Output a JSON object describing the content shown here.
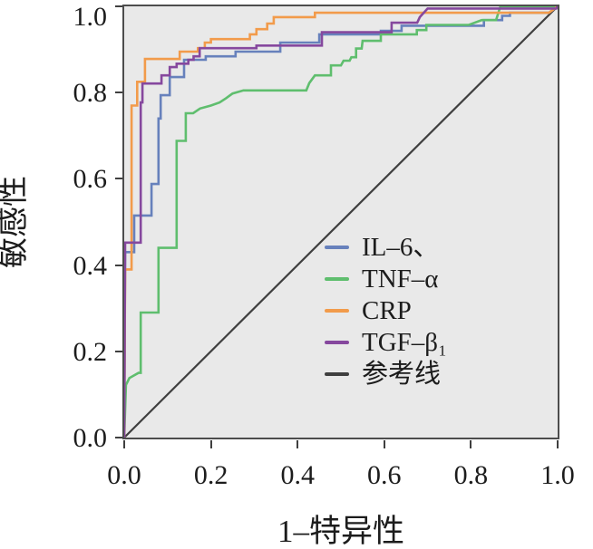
{
  "figure": {
    "kind": "roc-curve-figure",
    "background": "#ffffff"
  },
  "chart_data": {
    "type": "line",
    "subtype": "roc-step-curves",
    "title": "",
    "xlabel": "1–特异性",
    "ylabel": "敏感性",
    "xlim": [
      0,
      1
    ],
    "ylim": [
      0,
      1
    ],
    "x_ticks": [
      "0.0",
      "0.2",
      "0.4",
      "0.6",
      "0.8",
      "1.0"
    ],
    "y_ticks": [
      "0.0",
      "0.2",
      "0.4",
      "0.6",
      "0.8",
      "1.0"
    ],
    "grid": false,
    "plot_background": "#e9e9e9",
    "border_color": "#4d4d4d",
    "legend_position": "lower-right-inside",
    "series": [
      {
        "name": "IL–6、",
        "id": "il6",
        "color": "#6781BC",
        "width": 2.6,
        "z": 2,
        "points": [
          [
            0,
            0
          ],
          [
            0.002,
            0.43
          ],
          [
            0.023,
            0.43
          ],
          [
            0.023,
            0.515
          ],
          [
            0.063,
            0.515
          ],
          [
            0.063,
            0.588
          ],
          [
            0.079,
            0.588
          ],
          [
            0.079,
            0.74
          ],
          [
            0.084,
            0.74
          ],
          [
            0.084,
            0.794
          ],
          [
            0.105,
            0.794
          ],
          [
            0.105,
            0.836
          ],
          [
            0.138,
            0.836
          ],
          [
            0.138,
            0.876
          ],
          [
            0.188,
            0.876
          ],
          [
            0.188,
            0.884
          ],
          [
            0.257,
            0.884
          ],
          [
            0.257,
            0.895
          ],
          [
            0.36,
            0.895
          ],
          [
            0.36,
            0.916
          ],
          [
            0.45,
            0.916
          ],
          [
            0.45,
            0.935
          ],
          [
            0.592,
            0.935
          ],
          [
            0.592,
            0.943
          ],
          [
            0.64,
            0.943
          ],
          [
            0.64,
            0.955
          ],
          [
            0.83,
            0.955
          ],
          [
            0.83,
            0.968
          ],
          [
            0.872,
            0.968
          ],
          [
            0.872,
            0.978
          ],
          [
            0.89,
            0.978
          ],
          [
            0.89,
            0.985
          ],
          [
            0.98,
            0.985
          ],
          [
            1,
            1
          ]
        ]
      },
      {
        "name": "TNF–α",
        "id": "tnf-alpha",
        "color": "#5FBE6E",
        "width": 2.6,
        "z": 3,
        "points": [
          [
            0,
            0
          ],
          [
            0.004,
            0.122
          ],
          [
            0.012,
            0.138
          ],
          [
            0.033,
            0.15
          ],
          [
            0.038,
            0.15
          ],
          [
            0.038,
            0.29
          ],
          [
            0.079,
            0.29
          ],
          [
            0.079,
            0.44
          ],
          [
            0.121,
            0.44
          ],
          [
            0.121,
            0.688
          ],
          [
            0.142,
            0.688
          ],
          [
            0.142,
            0.752
          ],
          [
            0.159,
            0.752
          ],
          [
            0.175,
            0.763
          ],
          [
            0.2,
            0.77
          ],
          [
            0.22,
            0.777
          ],
          [
            0.235,
            0.787
          ],
          [
            0.25,
            0.798
          ],
          [
            0.275,
            0.805
          ],
          [
            0.42,
            0.805
          ],
          [
            0.427,
            0.822
          ],
          [
            0.44,
            0.84
          ],
          [
            0.477,
            0.84
          ],
          [
            0.477,
            0.863
          ],
          [
            0.5,
            0.863
          ],
          [
            0.506,
            0.874
          ],
          [
            0.52,
            0.874
          ],
          [
            0.524,
            0.882
          ],
          [
            0.535,
            0.882
          ],
          [
            0.535,
            0.902
          ],
          [
            0.548,
            0.902
          ],
          [
            0.55,
            0.92
          ],
          [
            0.592,
            0.92
          ],
          [
            0.592,
            0.935
          ],
          [
            0.675,
            0.935
          ],
          [
            0.675,
            0.945
          ],
          [
            0.697,
            0.945
          ],
          [
            0.697,
            0.957
          ],
          [
            0.795,
            0.957
          ],
          [
            0.825,
            0.968
          ],
          [
            0.858,
            0.968
          ],
          [
            0.868,
            1
          ],
          [
            1,
            1
          ]
        ]
      },
      {
        "name": "CRP",
        "id": "crp",
        "color": "#F29B4B",
        "width": 2.6,
        "z": 4,
        "points": [
          [
            0,
            0
          ],
          [
            0.002,
            0.39
          ],
          [
            0.017,
            0.39
          ],
          [
            0.017,
            0.77
          ],
          [
            0.03,
            0.77
          ],
          [
            0.03,
            0.825
          ],
          [
            0.048,
            0.825
          ],
          [
            0.048,
            0.878
          ],
          [
            0.128,
            0.878
          ],
          [
            0.128,
            0.895
          ],
          [
            0.17,
            0.895
          ],
          [
            0.17,
            0.903
          ],
          [
            0.186,
            0.903
          ],
          [
            0.186,
            0.916
          ],
          [
            0.2,
            0.916
          ],
          [
            0.2,
            0.924
          ],
          [
            0.29,
            0.924
          ],
          [
            0.29,
            0.935
          ],
          [
            0.305,
            0.935
          ],
          [
            0.305,
            0.947
          ],
          [
            0.33,
            0.947
          ],
          [
            0.33,
            0.96
          ],
          [
            0.345,
            0.96
          ],
          [
            0.345,
            0.975
          ],
          [
            0.44,
            0.975
          ],
          [
            0.44,
            0.985
          ],
          [
            0.98,
            0.985
          ],
          [
            1,
            1
          ]
        ]
      },
      {
        "name": "TGF–β₁",
        "id": "tgf-beta1",
        "color": "#86489E",
        "width": 2.6,
        "z": 5,
        "points": [
          [
            0,
            0
          ],
          [
            0.002,
            0.452
          ],
          [
            0.038,
            0.452
          ],
          [
            0.038,
            0.777
          ],
          [
            0.042,
            0.777
          ],
          [
            0.042,
            0.821
          ],
          [
            0.086,
            0.821
          ],
          [
            0.086,
            0.84
          ],
          [
            0.105,
            0.84
          ],
          [
            0.105,
            0.859
          ],
          [
            0.121,
            0.859
          ],
          [
            0.121,
            0.867
          ],
          [
            0.148,
            0.867
          ],
          [
            0.148,
            0.876
          ],
          [
            0.16,
            0.876
          ],
          [
            0.16,
            0.884
          ],
          [
            0.174,
            0.884
          ],
          [
            0.174,
            0.903
          ],
          [
            0.305,
            0.903
          ],
          [
            0.305,
            0.909
          ],
          [
            0.456,
            0.909
          ],
          [
            0.456,
            0.94
          ],
          [
            0.617,
            0.94
          ],
          [
            0.617,
            0.962
          ],
          [
            0.676,
            0.962
          ],
          [
            0.682,
            0.975
          ],
          [
            0.7,
            0.995
          ],
          [
            0.997,
            0.995
          ],
          [
            1,
            1
          ]
        ]
      },
      {
        "name": "参考线",
        "id": "reference-line",
        "color": "#3F3F3F",
        "width": 2.2,
        "z": 1,
        "points": [
          [
            0,
            0
          ],
          [
            1,
            1
          ]
        ]
      }
    ]
  }
}
